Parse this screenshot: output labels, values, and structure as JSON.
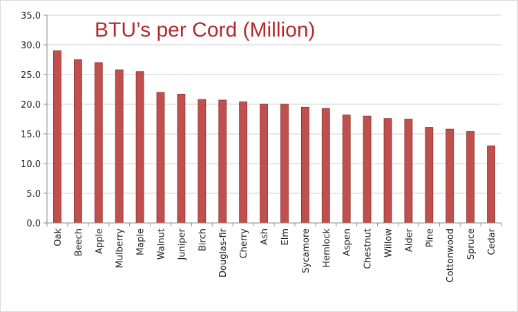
{
  "chart_data": {
    "type": "bar",
    "title": "BTU’s per Cord (Million)",
    "xlabel": "",
    "ylabel": "",
    "categories": [
      "Oak",
      "Beech",
      "Apple",
      "Mulberry",
      "Maple",
      "Walnut",
      "Juniper",
      "Birch",
      "Douglas-fir",
      "Cherry",
      "Ash",
      "Elm",
      "Sycamore",
      "Hemlock",
      "Aspen",
      "Chestnut",
      "Willow",
      "Alder",
      "Pine",
      "Cottonwood",
      "Spruce",
      "Cedar"
    ],
    "values": [
      29.0,
      27.5,
      27.0,
      25.8,
      25.5,
      22.0,
      21.7,
      20.8,
      20.7,
      20.4,
      20.0,
      20.0,
      19.5,
      19.3,
      18.2,
      18.0,
      17.6,
      17.5,
      16.1,
      15.8,
      15.4,
      13.0
    ],
    "ylim": [
      0,
      35
    ],
    "ytick_labels": [
      "0.0",
      "5.0",
      "10.0",
      "15.0",
      "20.0",
      "25.0",
      "30.0",
      "35.0"
    ],
    "grid": true,
    "legend": "none",
    "bar_color": "#c0504d",
    "bar_edge_color": "#8e2f2c",
    "title_color": "#b22b2b"
  }
}
